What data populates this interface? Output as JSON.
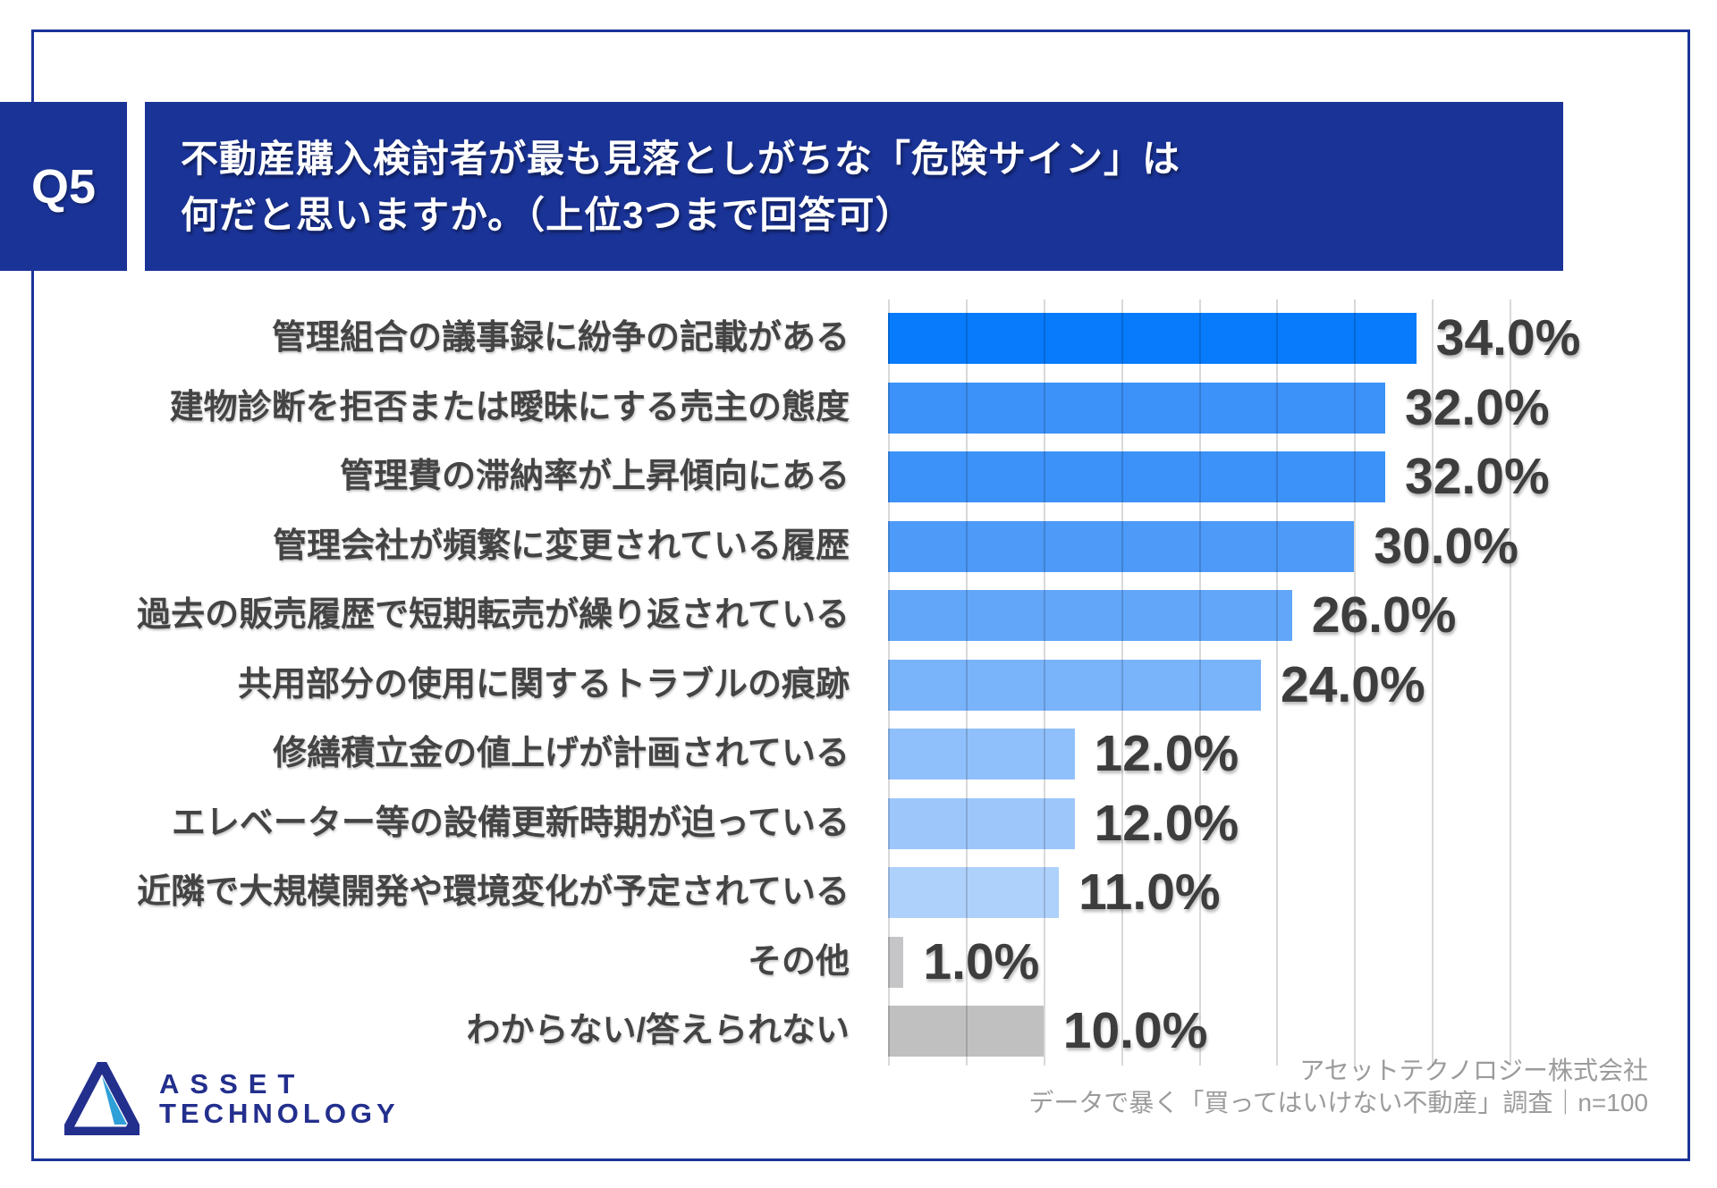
{
  "question": {
    "number": "Q5",
    "line1": "不動産購入検討者が最も見落としがちな「危険サイン」は",
    "line2": "何だと思いますか。（上位3つまで回答可）"
  },
  "chart_data": {
    "type": "bar",
    "orientation": "horizontal",
    "categories": [
      "管理組合の議事録に紛争の記載がある",
      "建物診断を拒否または曖昧にする売主の態度",
      "管理費の滞納率が上昇傾向にある",
      "管理会社が頻繁に変更されている履歴",
      "過去の販売履歴で短期転売が繰り返されている",
      "共用部分の使用に関するトラブルの痕跡",
      "修繕積立金の値上げが計画されている",
      "エレベーター等の設備更新時期が迫っている",
      "近隣で大規模開発や環境変化が予定されている",
      "その他",
      "わからない/答えられない"
    ],
    "values": [
      34.0,
      32.0,
      32.0,
      30.0,
      26.0,
      24.0,
      12.0,
      12.0,
      11.0,
      1.0,
      10.0
    ],
    "value_labels": [
      "34.0%",
      "32.0%",
      "32.0%",
      "30.0%",
      "26.0%",
      "24.0%",
      "12.0%",
      "12.0%",
      "11.0%",
      "1.0%",
      "10.0%"
    ],
    "bar_colors": [
      "#077bfb",
      "#3c92f8",
      "#3c92f8",
      "#4d9af8",
      "#62a6f9",
      "#79b3fa",
      "#90c0fb",
      "#9dc7fb",
      "#aed1fc",
      "#c5c5c7",
      "#c0c0c0"
    ],
    "xlim": [
      0,
      40
    ],
    "grid_step_pct": 5,
    "grid": true,
    "legend": false,
    "xlabel": "",
    "ylabel": ""
  },
  "footer": {
    "logo_line1": "ASSET",
    "logo_line2": "TECHNOLOGY",
    "credit_line1": "アセットテクノロジー株式会社",
    "credit_line2": "データで暴く「買ってはいけない不動産」調査｜n=100"
  },
  "colors": {
    "navy": "#1a3397",
    "frame_border": "#1a3397",
    "logo_navy": "#232f8d",
    "logo_blue": "#2f9fd8",
    "category_text": "#444444",
    "value_text": "#3d3d3d",
    "credit_text": "#9b9b9b",
    "gridline": "#d9d9d9"
  }
}
